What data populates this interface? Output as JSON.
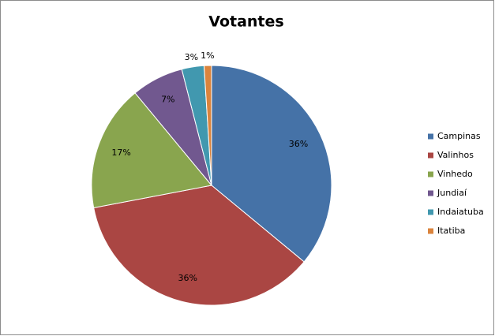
{
  "chart_data": {
    "type": "pie",
    "title": "Votantes",
    "categories": [
      "Campinas",
      "Valinhos",
      "Vinhedo",
      "Jundiaí",
      "Indaiatuba",
      "Itatiba"
    ],
    "values": [
      36,
      36,
      17,
      7,
      3,
      1
    ],
    "value_labels": [
      "36%",
      "36%",
      "17%",
      "7%",
      "3%",
      "1%"
    ],
    "colors": [
      "#4572a7",
      "#aa4643",
      "#89a54e",
      "#71588f",
      "#4198af",
      "#db843d"
    ],
    "legend": "right"
  }
}
